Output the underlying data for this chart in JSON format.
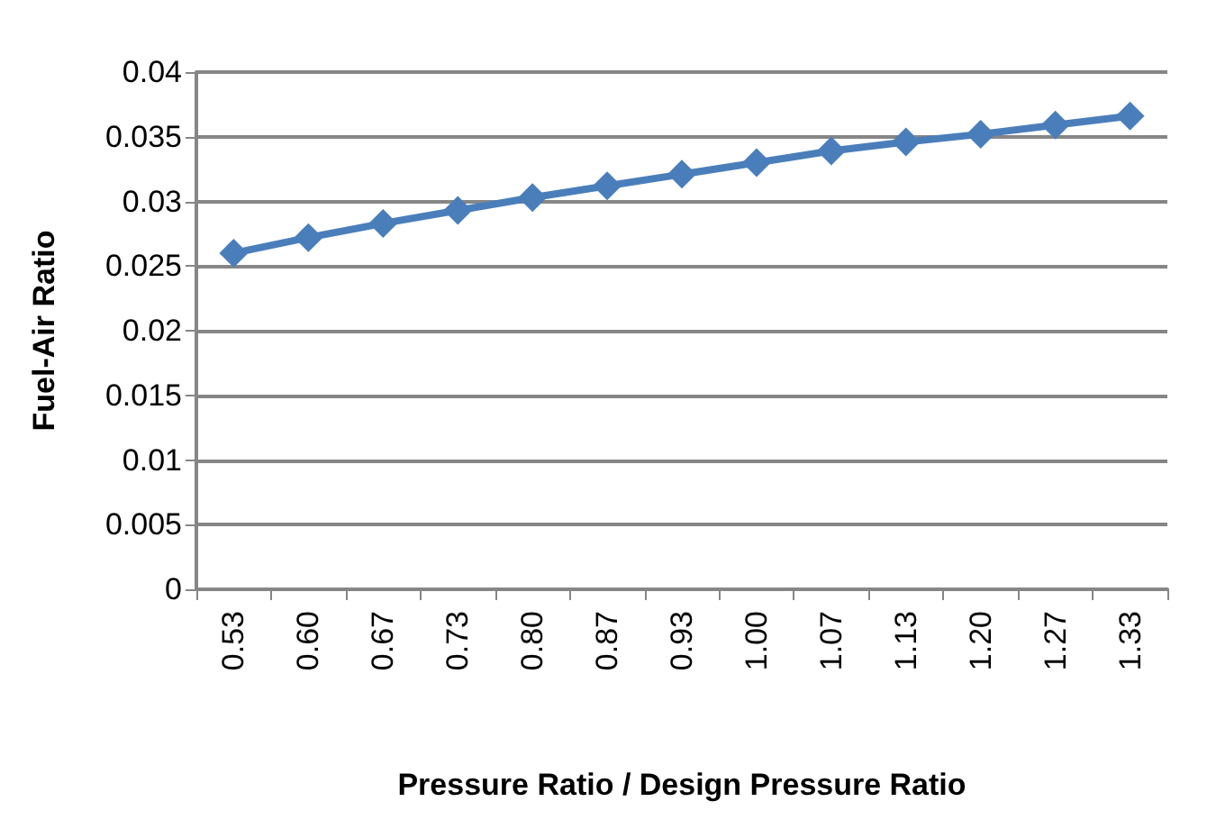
{
  "chart_data": {
    "type": "line",
    "xlabel": "Pressure Ratio / Design Pressure Ratio",
    "ylabel": "Fuel-Air Ratio",
    "categories": [
      "0.53",
      "0.60",
      "0.67",
      "0.73",
      "0.80",
      "0.87",
      "0.93",
      "1.00",
      "1.07",
      "1.13",
      "1.20",
      "1.27",
      "1.33"
    ],
    "series": [
      {
        "color": "#4a7ebb",
        "values": [
          0.026,
          0.0272,
          0.0283,
          0.0293,
          0.0303,
          0.0312,
          0.0321,
          0.033,
          0.0339,
          0.0346,
          0.0352,
          0.0359,
          0.0366
        ]
      }
    ],
    "ylim": [
      0,
      0.04
    ],
    "yticks": [
      0,
      0.005,
      0.01,
      0.015,
      0.02,
      0.025,
      0.03,
      0.035,
      0.04
    ],
    "grid": "y",
    "marker": "diamond",
    "line_style": "solid"
  }
}
